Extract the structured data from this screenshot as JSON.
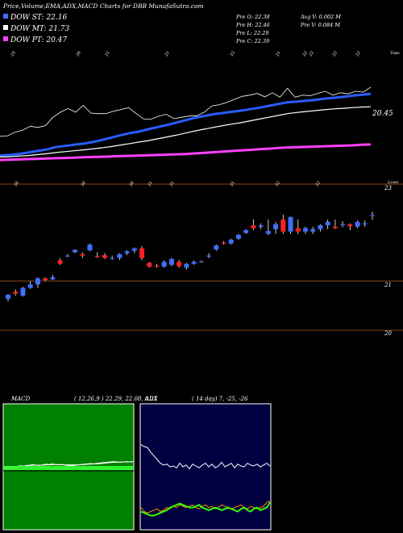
{
  "header": {
    "title": "Price,Volume,EMA,ADX,MACD Charts for DBB MunafaSutra.com",
    "legend": [
      {
        "label": "DOW ST: 22.16",
        "color": "#3f6fff"
      },
      {
        "label": "DOW MT: 21.73",
        "color": "#ffffff"
      },
      {
        "label": "DOW PT: 20.47",
        "color": "#ff40ff"
      }
    ],
    "stats_left": [
      "Pre  O: 22.38",
      "Pre  H: 22.46",
      "Pre  L: 22.29",
      "Pre  C: 22.39"
    ],
    "stats_right": [
      "Avg V: 0.002  M",
      "Pre  V: 0.084  M"
    ]
  },
  "colors": {
    "up": "#3f6fff",
    "down": "#ff2020",
    "st": "#2a5cff",
    "mt": "#ffffff",
    "pt": "#ff40ff",
    "grid": "#8a4a1a",
    "macd_bg": "#008000",
    "adx_bg": "#000040"
  },
  "chart_data": [
    {
      "type": "line",
      "title": "EMA",
      "top_labels": [
        "25",
        "26",
        "21",
        "21",
        "22",
        "21",
        "22",
        "22",
        "22",
        "22"
      ],
      "corner_label": "Tops",
      "price_label": "20.45",
      "series": [
        {
          "values": [
            20.1,
            20.12,
            20.15,
            20.2,
            20.25,
            20.3,
            20.38,
            20.42,
            20.46,
            20.5,
            20.55,
            20.62,
            20.7,
            20.78,
            20.85,
            20.9,
            20.98,
            21.05,
            21.12,
            21.2,
            21.28,
            21.36,
            21.42,
            21.48,
            21.52,
            21.56,
            21.6,
            21.65,
            21.7,
            21.76,
            21.82,
            21.88,
            21.9,
            21.93,
            21.96,
            22.0,
            22.03,
            22.06,
            22.1,
            22.13,
            22.16
          ]
        },
        {
          "values": [
            20.05,
            20.06,
            20.08,
            20.1,
            20.13,
            20.16,
            20.2,
            20.23,
            20.26,
            20.29,
            20.32,
            20.36,
            20.4,
            20.45,
            20.5,
            20.55,
            20.6,
            20.66,
            20.72,
            20.78,
            20.85,
            20.92,
            20.98,
            21.04,
            21.1,
            21.15,
            21.2,
            21.26,
            21.32,
            21.38,
            21.44,
            21.5,
            21.54,
            21.57,
            21.6,
            21.63,
            21.66,
            21.68,
            21.7,
            21.72,
            21.73
          ]
        },
        {
          "values": [
            19.95,
            19.96,
            19.97,
            19.98,
            19.99,
            20.0,
            20.01,
            20.02,
            20.03,
            20.04,
            20.05,
            20.06,
            20.07,
            20.08,
            20.09,
            20.1,
            20.11,
            20.12,
            20.13,
            20.14,
            20.15,
            20.17,
            20.19,
            20.21,
            20.23,
            20.25,
            20.27,
            20.29,
            20.31,
            20.33,
            20.35,
            20.37,
            20.38,
            20.39,
            20.4,
            20.41,
            20.42,
            20.43,
            20.44,
            20.46,
            20.47
          ]
        }
      ]
    },
    {
      "type": "candlestick",
      "title": "Price",
      "top_labels": [
        "26",
        "26",
        "26",
        "21",
        "21",
        "21",
        "22",
        "22"
      ],
      "corner_label": "Lows",
      "axis_labels": [
        "23",
        "21",
        "20"
      ],
      "candles": [
        {
          "o": 20.65,
          "h": 20.75,
          "l": 20.6,
          "c": 20.74
        },
        {
          "o": 20.8,
          "h": 20.85,
          "l": 20.72,
          "c": 20.76
        },
        {
          "o": 20.72,
          "h": 20.9,
          "l": 20.7,
          "c": 20.88
        },
        {
          "o": 20.88,
          "h": 21.02,
          "l": 20.86,
          "c": 20.95
        },
        {
          "o": 20.95,
          "h": 21.1,
          "l": 20.88,
          "c": 21.08
        },
        {
          "o": 21.08,
          "h": 21.1,
          "l": 21.02,
          "c": 21.04
        },
        {
          "o": 21.06,
          "h": 21.15,
          "l": 21.04,
          "c": 21.1
        },
        {
          "o": 21.45,
          "h": 21.5,
          "l": 21.36,
          "c": 21.38
        },
        {
          "o": 21.55,
          "h": 21.58,
          "l": 21.52,
          "c": 21.55
        },
        {
          "o": 21.62,
          "h": 21.68,
          "l": 21.6,
          "c": 21.67
        },
        {
          "o": 21.58,
          "h": 21.62,
          "l": 21.5,
          "c": 21.55
        },
        {
          "o": 21.66,
          "h": 21.8,
          "l": 21.64,
          "c": 21.78
        },
        {
          "o": 21.54,
          "h": 21.62,
          "l": 21.5,
          "c": 21.52
        },
        {
          "o": 21.56,
          "h": 21.6,
          "l": 21.48,
          "c": 21.5
        },
        {
          "o": 21.5,
          "h": 21.55,
          "l": 21.46,
          "c": 21.5
        },
        {
          "o": 21.5,
          "h": 21.6,
          "l": 21.46,
          "c": 21.58
        },
        {
          "o": 21.6,
          "h": 21.66,
          "l": 21.56,
          "c": 21.64
        },
        {
          "o": 21.65,
          "h": 21.72,
          "l": 21.6,
          "c": 21.7
        },
        {
          "o": 21.7,
          "h": 21.75,
          "l": 21.45,
          "c": 21.5
        },
        {
          "o": 21.4,
          "h": 21.42,
          "l": 21.3,
          "c": 21.32
        },
        {
          "o": 21.34,
          "h": 21.38,
          "l": 21.3,
          "c": 21.32
        },
        {
          "o": 21.32,
          "h": 21.45,
          "l": 21.3,
          "c": 21.42
        },
        {
          "o": 21.36,
          "h": 21.5,
          "l": 21.33,
          "c": 21.48
        },
        {
          "o": 21.42,
          "h": 21.46,
          "l": 21.3,
          "c": 21.33
        },
        {
          "o": 21.3,
          "h": 21.4,
          "l": 21.26,
          "c": 21.38
        },
        {
          "o": 21.38,
          "h": 21.45,
          "l": 21.36,
          "c": 21.42
        },
        {
          "o": 21.43,
          "h": 21.45,
          "l": 21.4,
          "c": 21.43
        },
        {
          "o": 21.53,
          "h": 21.6,
          "l": 21.5,
          "c": 21.55
        },
        {
          "o": 21.68,
          "h": 21.78,
          "l": 21.65,
          "c": 21.76
        },
        {
          "o": 21.82,
          "h": 21.85,
          "l": 21.78,
          "c": 21.8
        },
        {
          "o": 21.8,
          "h": 21.9,
          "l": 21.78,
          "c": 21.88
        },
        {
          "o": 21.9,
          "h": 22.0,
          "l": 21.88,
          "c": 21.98
        },
        {
          "o": 22.02,
          "h": 22.1,
          "l": 22.0,
          "c": 22.08
        },
        {
          "o": 22.18,
          "h": 22.3,
          "l": 22.08,
          "c": 22.12
        },
        {
          "o": 22.15,
          "h": 22.22,
          "l": 22.1,
          "c": 22.18
        },
        {
          "o": 22.0,
          "h": 22.3,
          "l": 21.98,
          "c": 22.06
        },
        {
          "o": 22.1,
          "h": 22.25,
          "l": 22.0,
          "c": 22.2
        },
        {
          "o": 22.3,
          "h": 22.4,
          "l": 22.0,
          "c": 22.05
        },
        {
          "o": 22.05,
          "h": 22.36,
          "l": 22.0,
          "c": 22.35
        },
        {
          "o": 22.12,
          "h": 22.3,
          "l": 22.0,
          "c": 22.05
        },
        {
          "o": 22.05,
          "h": 22.15,
          "l": 22.0,
          "c": 22.12
        },
        {
          "o": 22.05,
          "h": 22.15,
          "l": 22.0,
          "c": 22.1
        },
        {
          "o": 22.1,
          "h": 22.2,
          "l": 22.05,
          "c": 22.18
        },
        {
          "o": 22.18,
          "h": 22.3,
          "l": 22.1,
          "c": 22.25
        },
        {
          "o": 22.15,
          "h": 22.3,
          "l": 22.1,
          "c": 22.12
        },
        {
          "o": 22.18,
          "h": 22.26,
          "l": 22.14,
          "c": 22.2
        },
        {
          "o": 22.2,
          "h": 22.22,
          "l": 22.08,
          "c": 22.16
        },
        {
          "o": 22.15,
          "h": 22.28,
          "l": 22.12,
          "c": 22.25
        },
        {
          "o": 22.2,
          "h": 22.28,
          "l": 22.15,
          "c": 22.22
        },
        {
          "o": 22.38,
          "h": 22.46,
          "l": 22.29,
          "c": 22.39
        }
      ]
    },
    {
      "type": "line",
      "title": "MACD",
      "label": "MACD",
      "params": "( 12,26,9 ) 22.29, 22.08, 0.21",
      "series": [
        {
          "values": [
            0.02,
            0.03,
            0.05,
            0.04,
            0.06,
            0.08,
            0.07,
            0.09,
            0.1,
            0.12,
            0.1,
            0.09,
            0.11,
            0.13,
            0.12,
            0.14,
            0.12,
            0.11,
            0.12,
            0.1,
            0.09,
            0.08,
            0.1,
            0.11,
            0.12,
            0.13,
            0.14,
            0.15,
            0.14,
            0.16,
            0.17,
            0.18,
            0.19,
            0.2,
            0.21,
            0.2,
            0.19,
            0.2,
            0.21,
            0.2,
            0.21
          ]
        },
        {
          "values": [
            0.01,
            0.02,
            0.03,
            0.04,
            0.05,
            0.06,
            0.07,
            0.08,
            0.09,
            0.1,
            0.1,
            0.1,
            0.1,
            0.11,
            0.11,
            0.12,
            0.12,
            0.12,
            0.12,
            0.11,
            0.11,
            0.11,
            0.11,
            0.11,
            0.12,
            0.12,
            0.13,
            0.13,
            0.14,
            0.14,
            0.15,
            0.16,
            0.17,
            0.18,
            0.19,
            0.19,
            0.19,
            0.2,
            0.2,
            0.2,
            0.21
          ]
        }
      ]
    },
    {
      "type": "line",
      "title": "ADX",
      "label": "ADX",
      "params": "( 14  day) 7,  -25,  -26",
      "series": [
        {
          "values": [
            30,
            28,
            27,
            22,
            18,
            14,
            10,
            8,
            9,
            6,
            7,
            5,
            10,
            6,
            8,
            4,
            9,
            7,
            5,
            8,
            10,
            6,
            9,
            5,
            7,
            11,
            6,
            8,
            10,
            5,
            9,
            7,
            6,
            10,
            8,
            7,
            9,
            6,
            8,
            10,
            7
          ]
        },
        {
          "values": [
            -30,
            -33,
            -34,
            -33,
            -32,
            -31,
            -33,
            -32,
            -30,
            -31,
            -29,
            -30,
            -28,
            -29,
            -30,
            -29,
            -28,
            -30,
            -31,
            -29,
            -28,
            -30,
            -29,
            -31,
            -30,
            -28,
            -29,
            -30,
            -31,
            -30,
            -29,
            -28,
            -30,
            -31,
            -29,
            -30,
            -31,
            -30,
            -29,
            -26,
            -25
          ]
        },
        {
          "values": [
            -33,
            -34,
            -35,
            -36,
            -36,
            -35,
            -34,
            -33,
            -32,
            -30,
            -29,
            -28,
            -27,
            -28,
            -29,
            -30,
            -30,
            -29,
            -28,
            -30,
            -31,
            -32,
            -31,
            -30,
            -31,
            -32,
            -31,
            -30,
            -31,
            -32,
            -33,
            -31,
            -30,
            -32,
            -33,
            -31,
            -30,
            -32,
            -31,
            -30,
            -26
          ]
        }
      ]
    }
  ]
}
